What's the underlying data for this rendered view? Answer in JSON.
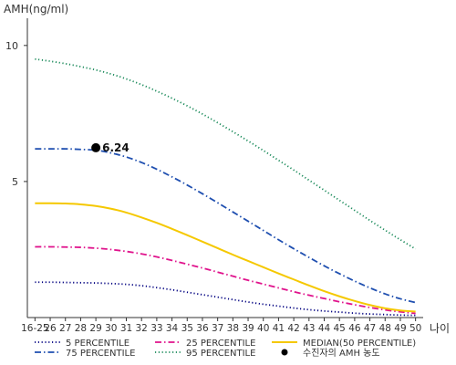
{
  "chart_data": {
    "type": "line",
    "ylabel": "AMH(ng/ml)",
    "xlabel": "나이",
    "ylim": [
      0,
      11
    ],
    "yticks": [
      "5",
      "10"
    ],
    "ytick_values": [
      5,
      10
    ],
    "x": [
      "16-25",
      "26",
      "27",
      "28",
      "29",
      "30",
      "31",
      "32",
      "33",
      "34",
      "35",
      "36",
      "37",
      "38",
      "39",
      "40",
      "41",
      "42",
      "43",
      "44",
      "45",
      "46",
      "47",
      "48",
      "49",
      "50"
    ],
    "series": [
      {
        "name": "5 PERCENTILE",
        "color": "#000080",
        "dash": "dotted",
        "values": [
          1.3,
          1.3,
          1.29,
          1.28,
          1.27,
          1.25,
          1.22,
          1.17,
          1.1,
          1.02,
          0.93,
          0.84,
          0.75,
          0.66,
          0.57,
          0.49,
          0.42,
          0.35,
          0.29,
          0.24,
          0.2,
          0.16,
          0.13,
          0.11,
          0.09,
          0.08
        ]
      },
      {
        "name": "25 PERCENTILE",
        "color": "#e0138c",
        "dash": "dashdot",
        "values": [
          2.6,
          2.6,
          2.59,
          2.58,
          2.55,
          2.5,
          2.43,
          2.34,
          2.23,
          2.1,
          1.96,
          1.82,
          1.67,
          1.52,
          1.37,
          1.23,
          1.09,
          0.95,
          0.82,
          0.7,
          0.58,
          0.47,
          0.37,
          0.28,
          0.21,
          0.15
        ]
      },
      {
        "name": "MEDIAN(50 PERCENTILE)",
        "color": "#f5c800",
        "dash": "solid",
        "values": [
          4.2,
          4.2,
          4.19,
          4.16,
          4.1,
          4.0,
          3.86,
          3.68,
          3.48,
          3.26,
          3.03,
          2.79,
          2.55,
          2.31,
          2.08,
          1.85,
          1.62,
          1.4,
          1.18,
          0.97,
          0.78,
          0.61,
          0.46,
          0.34,
          0.26,
          0.22
        ]
      },
      {
        "name": "75 PERCENTILE",
        "color": "#1f4fb0",
        "dash": "dashdot",
        "values": [
          6.2,
          6.2,
          6.2,
          6.18,
          6.15,
          6.05,
          5.9,
          5.7,
          5.45,
          5.17,
          4.87,
          4.55,
          4.22,
          3.88,
          3.54,
          3.2,
          2.86,
          2.53,
          2.21,
          1.9,
          1.61,
          1.34,
          1.09,
          0.87,
          0.69,
          0.55
        ]
      },
      {
        "name": "95 PERCENTILE",
        "color": "#1a8a5a",
        "dash": "dotted",
        "values": [
          9.5,
          9.42,
          9.33,
          9.22,
          9.1,
          8.95,
          8.77,
          8.56,
          8.32,
          8.06,
          7.78,
          7.48,
          7.16,
          6.83,
          6.49,
          6.14,
          5.78,
          5.42,
          5.05,
          4.68,
          4.31,
          3.94,
          3.57,
          3.21,
          2.86,
          2.52
        ]
      }
    ],
    "patient": {
      "name": "수진자의 AMH 농도",
      "x": "29",
      "value": 6.24,
      "label": "6.24"
    },
    "legend_position": "bottom",
    "grid": false
  }
}
